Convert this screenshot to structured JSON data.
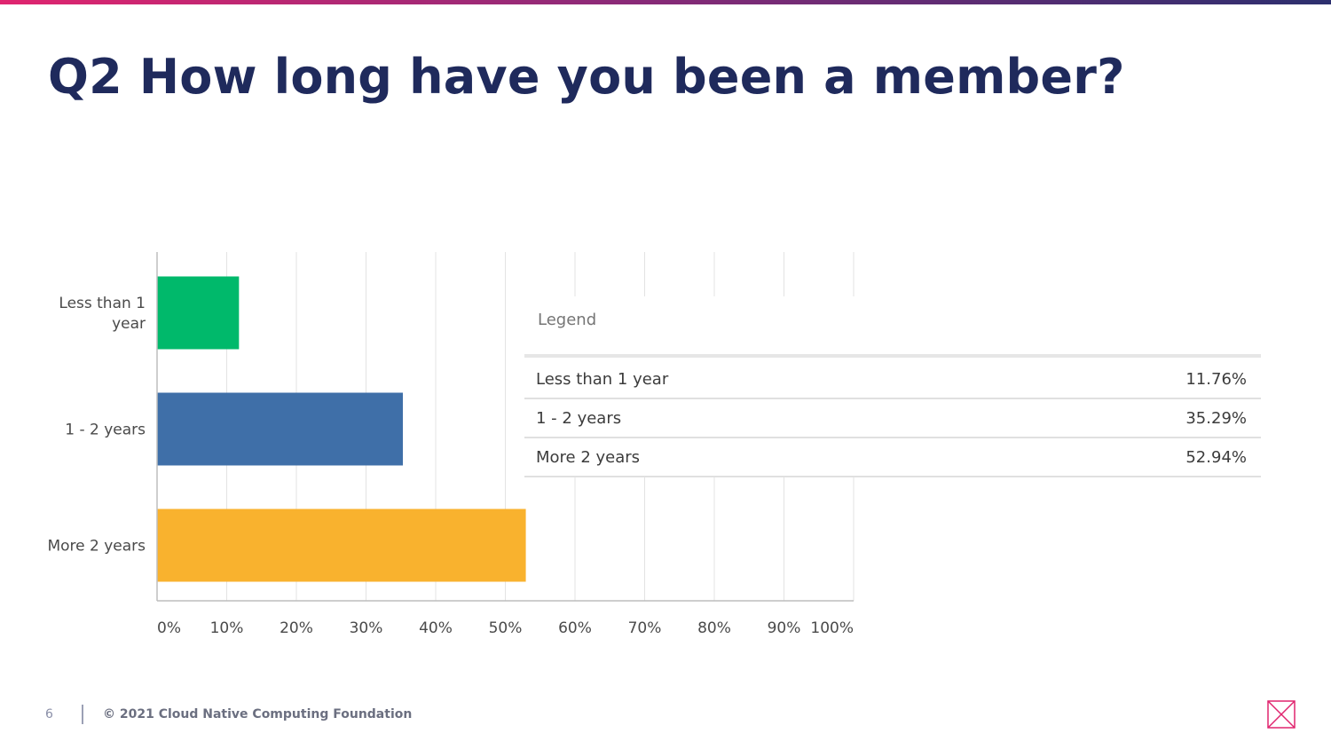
{
  "slide": {
    "title": "Q2 How long have you been a member?",
    "page_number": "6",
    "copyright": "© 2021 Cloud Native Computing Foundation",
    "logo_icon": "cncf-x-mark-icon"
  },
  "colors": {
    "title": "#1f2a5c",
    "accent_gradient": [
      "#e0256f",
      "#8e2a78",
      "#2c2f6e"
    ],
    "bars": [
      "#00b96b",
      "#3f6fa8",
      "#f9b22e"
    ]
  },
  "chart_data": {
    "type": "bar",
    "orientation": "horizontal",
    "categories": [
      "Less than 1 year",
      "1 - 2 years",
      "More 2 years"
    ],
    "category_labels": [
      [
        "Less than 1",
        "year"
      ],
      [
        "1 - 2 years"
      ],
      [
        "More 2 years"
      ]
    ],
    "values": [
      11.76,
      35.29,
      52.94
    ],
    "xlim": [
      0,
      100
    ],
    "xticks": [
      0,
      10,
      20,
      30,
      40,
      50,
      60,
      70,
      80,
      90,
      100
    ],
    "xtick_labels": [
      "0%",
      "10%",
      "20%",
      "30%",
      "40%",
      "50%",
      "60%",
      "70%",
      "80%",
      "90%",
      "100%"
    ],
    "grid": true,
    "legend": {
      "title": "Legend",
      "placement": "inside-right",
      "rows": [
        {
          "label": "Less than 1 year",
          "value": "11.76%"
        },
        {
          "label": "1 - 2 years",
          "value": "35.29%"
        },
        {
          "label": "More 2 years",
          "value": "52.94%"
        }
      ]
    }
  }
}
